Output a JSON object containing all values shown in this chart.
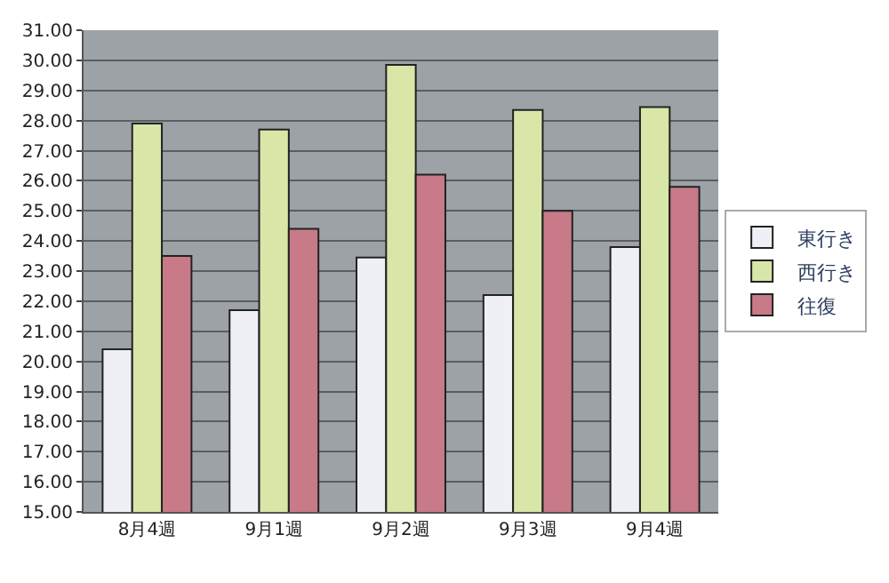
{
  "chart_data": {
    "type": "bar",
    "categories": [
      "8月4週",
      "9月1週",
      "9月2週",
      "9月3週",
      "9月4週"
    ],
    "series": [
      {
        "name": "東行き",
        "color": "#eef0f6",
        "values": [
          20.4,
          21.7,
          23.45,
          22.2,
          23.8
        ]
      },
      {
        "name": "西行き",
        "color": "#d8e6a8",
        "values": [
          27.9,
          27.7,
          29.85,
          28.35,
          28.45
        ]
      },
      {
        "name": "往復",
        "color": "#c87a88",
        "values": [
          23.5,
          24.4,
          26.2,
          25.0,
          25.8
        ]
      }
    ],
    "ylim": [
      15,
      31
    ],
    "yticks": [
      {
        "value": 15,
        "label": "15.00"
      },
      {
        "value": 16,
        "label": "16.00"
      },
      {
        "value": 17,
        "label": "17.00"
      },
      {
        "value": 18,
        "label": "18.00"
      },
      {
        "value": 19,
        "label": "19.00"
      },
      {
        "value": 20,
        "label": "20.00"
      },
      {
        "value": 21,
        "label": "21.00"
      },
      {
        "value": 22,
        "label": "22.00"
      },
      {
        "value": 23,
        "label": "23.00"
      },
      {
        "value": 24,
        "label": "24.00"
      },
      {
        "value": 25,
        "label": "25.00"
      },
      {
        "value": 26,
        "label": "26.00"
      },
      {
        "value": 27,
        "label": "27.00"
      },
      {
        "value": 28,
        "label": "28.00"
      },
      {
        "value": 29,
        "label": "29.00"
      },
      {
        "value": 30,
        "label": "30.00"
      },
      {
        "value": 31,
        "label": "31.00"
      }
    ],
    "grid": "y",
    "legend": "right"
  }
}
